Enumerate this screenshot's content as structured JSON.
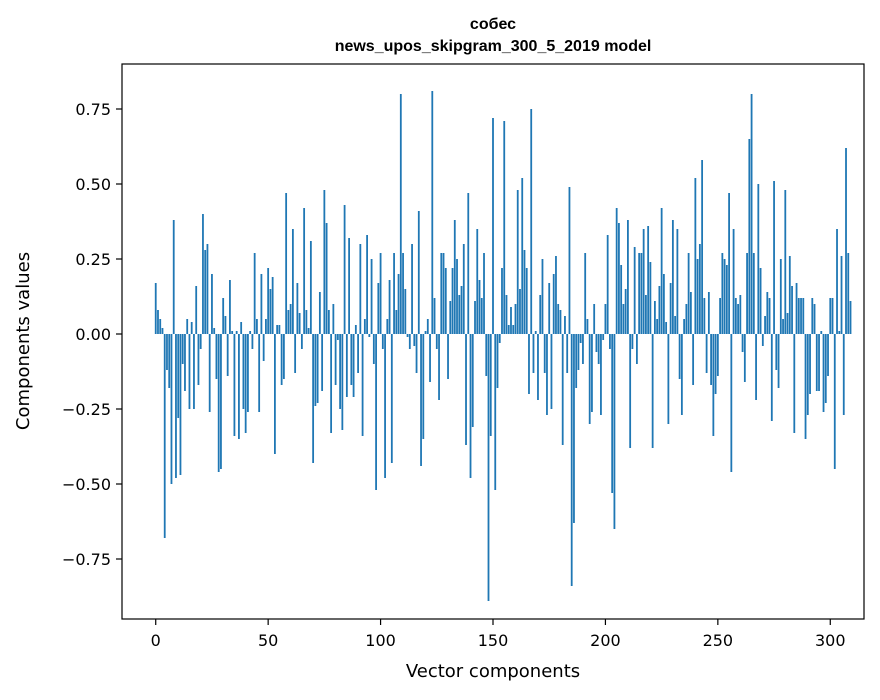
{
  "chart_data": {
    "type": "bar",
    "title_line1": "собес",
    "title_line2": "news_upos_skipgram_300_5_2019 model",
    "xlabel": "Vector components",
    "ylabel": "Components values",
    "xlim": [
      -15,
      315
    ],
    "ylim": [
      -0.95,
      0.9
    ],
    "xticks": [
      0,
      50,
      100,
      150,
      200,
      250,
      300
    ],
    "xtick_labels": [
      "0",
      "50",
      "100",
      "150",
      "200",
      "250",
      "300"
    ],
    "yticks": [
      -0.75,
      -0.5,
      -0.25,
      0.0,
      0.25,
      0.5,
      0.75
    ],
    "ytick_labels": [
      "−0.75",
      "−0.50",
      "−0.25",
      "0.00",
      "0.25",
      "0.50",
      "0.75"
    ],
    "grid": false,
    "bar_color": "#1f77b4",
    "series": [
      {
        "name": "собес",
        "values": [
          0.17,
          0.08,
          0.05,
          0.02,
          -0.68,
          -0.12,
          -0.18,
          -0.5,
          0.38,
          -0.48,
          -0.28,
          -0.47,
          -0.1,
          -0.19,
          0.05,
          -0.25,
          0.04,
          -0.25,
          0.16,
          -0.17,
          -0.05,
          0.4,
          0.28,
          0.3,
          -0.26,
          0.2,
          0.02,
          -0.15,
          -0.46,
          -0.45,
          0.12,
          0.06,
          -0.14,
          0.18,
          0.01,
          -0.34,
          0.01,
          -0.35,
          0.04,
          -0.25,
          -0.33,
          -0.26,
          0.01,
          -0.05,
          0.27,
          0.05,
          -0.26,
          0.2,
          -0.09,
          0.05,
          0.22,
          0.15,
          0.19,
          -0.4,
          0.03,
          0.03,
          -0.17,
          -0.15,
          0.47,
          0.08,
          0.1,
          0.35,
          -0.13,
          0.17,
          0.07,
          -0.05,
          0.42,
          0.08,
          0.02,
          0.31,
          -0.43,
          -0.24,
          -0.23,
          0.14,
          -0.19,
          0.48,
          0.37,
          0.08,
          -0.33,
          0.1,
          -0.17,
          -0.02,
          -0.25,
          -0.32,
          0.43,
          -0.21,
          0.32,
          -0.17,
          -0.21,
          0.03,
          -0.13,
          0.3,
          -0.34,
          0.05,
          0.33,
          -0.01,
          0.25,
          -0.1,
          -0.52,
          0.17,
          0.27,
          -0.05,
          -0.48,
          0.05,
          0.18,
          -0.43,
          0.27,
          0.08,
          0.2,
          0.8,
          0.27,
          0.15,
          -0.01,
          -0.05,
          0.3,
          -0.04,
          -0.13,
          0.41,
          -0.44,
          -0.35,
          0.01,
          0.05,
          -0.16,
          0.81,
          0.12,
          -0.05,
          -0.22,
          0.27,
          0.27,
          0.22,
          -0.15,
          0.11,
          0.22,
          0.38,
          0.25,
          0.13,
          0.16,
          0.3,
          -0.37,
          0.47,
          -0.48,
          -0.31,
          0.11,
          0.35,
          0.18,
          0.12,
          0.27,
          -0.14,
          -0.89,
          -0.34,
          0.72,
          -0.52,
          -0.18,
          -0.03,
          0.22,
          0.71,
          0.13,
          0.03,
          0.09,
          0.03,
          0.1,
          0.48,
          0.15,
          0.52,
          0.28,
          0.22,
          -0.2,
          0.75,
          -0.13,
          0.01,
          -0.22,
          0.13,
          0.25,
          -0.13,
          -0.27,
          0.17,
          -0.25,
          0.2,
          0.26,
          0.1,
          0.08,
          -0.37,
          0.06,
          -0.13,
          0.49,
          -0.84,
          -0.63,
          -0.18,
          -0.12,
          -0.03,
          -0.1,
          0.27,
          0.05,
          -0.3,
          -0.26,
          0.1,
          -0.06,
          -0.1,
          -0.27,
          -0.02,
          0.1,
          0.33,
          -0.05,
          -0.53,
          -0.65,
          0.42,
          0.37,
          0.23,
          0.1,
          0.15,
          0.38,
          -0.38,
          -0.05,
          0.29,
          -0.1,
          0.27,
          0.27,
          0.35,
          0.13,
          0.36,
          0.24,
          -0.38,
          0.11,
          0.05,
          0.16,
          0.42,
          0.2,
          0.04,
          -0.3,
          0.17,
          0.38,
          0.06,
          0.35,
          -0.15,
          -0.27,
          0.05,
          0.1,
          0.27,
          0.14,
          -0.17,
          0.52,
          0.25,
          0.3,
          0.58,
          0.12,
          -0.13,
          0.14,
          -0.17,
          -0.34,
          -0.2,
          -0.14,
          0.12,
          0.27,
          0.25,
          0.23,
          0.47,
          -0.46,
          0.35,
          0.12,
          0.1,
          0.13,
          -0.06,
          -0.16,
          0.27,
          0.65,
          0.8,
          0.27,
          -0.22,
          0.5,
          0.22,
          -0.04,
          0.06,
          0.14,
          0.12,
          -0.29,
          0.51,
          -0.12,
          -0.18,
          0.25,
          0.05,
          0.48,
          0.07,
          0.26,
          0.16,
          -0.33,
          0.17,
          0.12,
          0.12,
          0.12,
          -0.35,
          -0.27,
          -0.2,
          0.12,
          0.1,
          -0.19,
          -0.19,
          0.01,
          -0.26,
          -0.23,
          -0.14,
          0.12,
          0.12,
          -0.45,
          0.35,
          0.01,
          0.26,
          -0.27,
          0.62,
          0.27,
          0.11
        ]
      }
    ]
  }
}
